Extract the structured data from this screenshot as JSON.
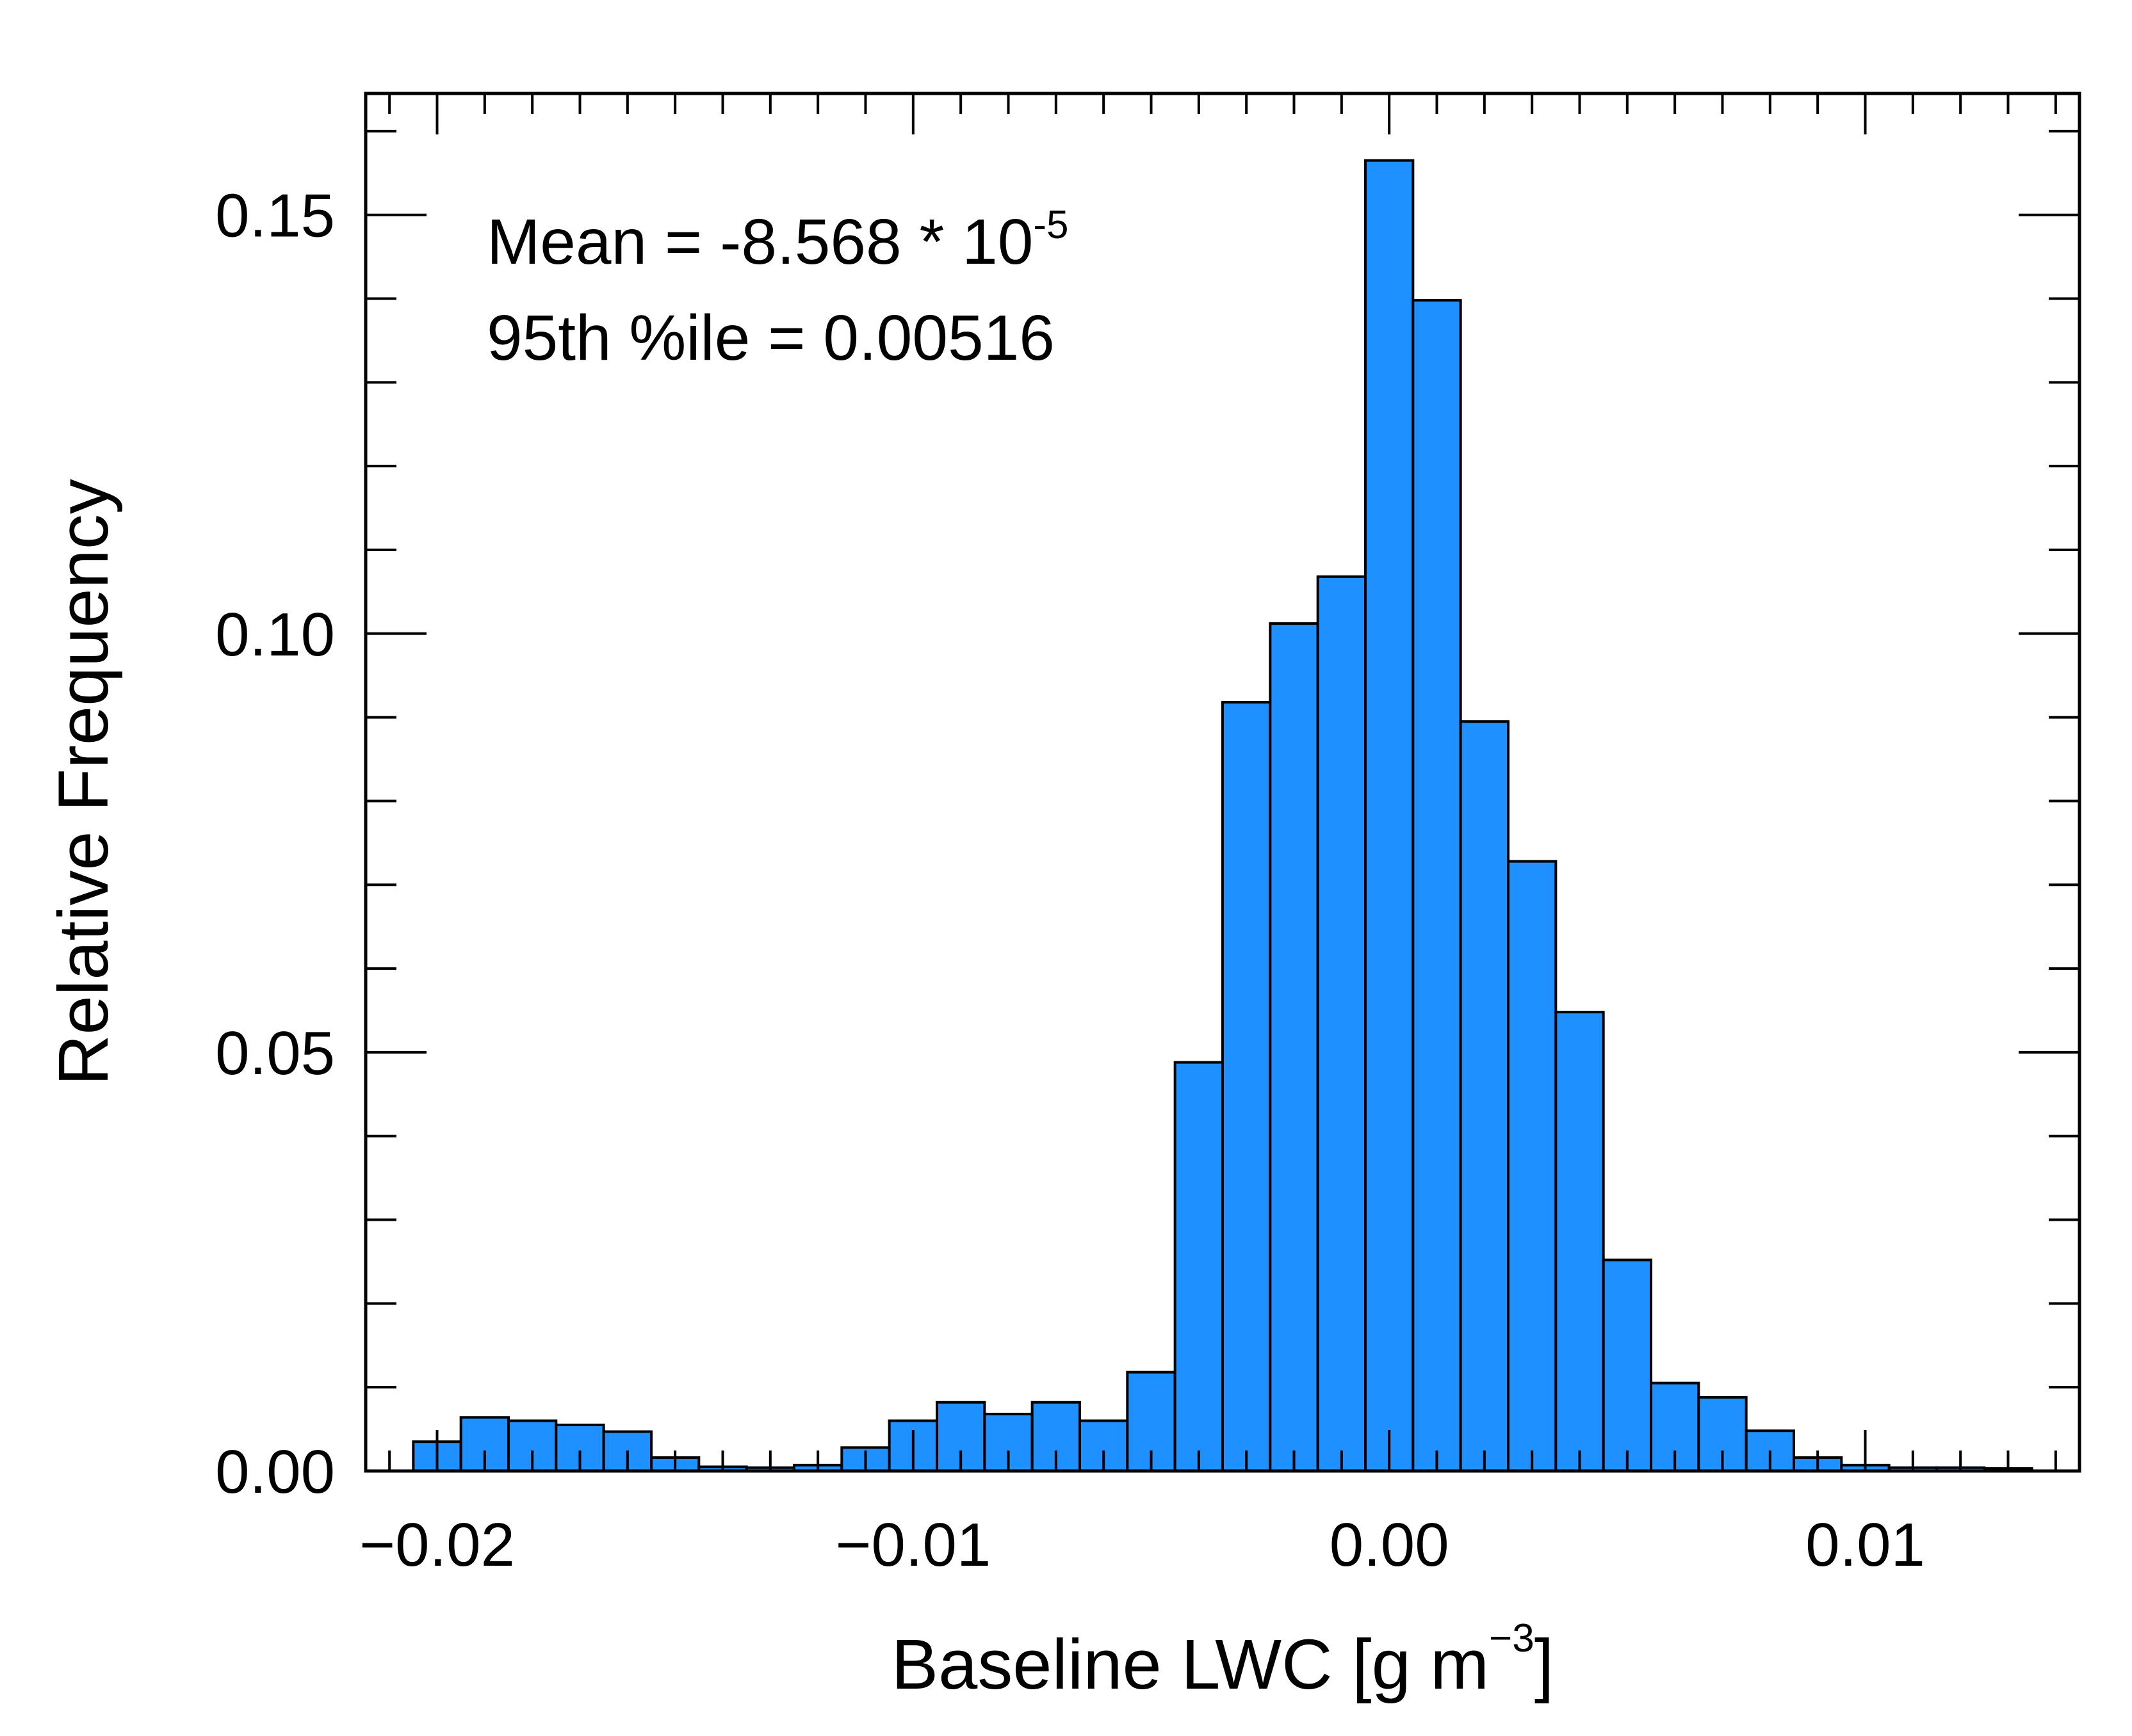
{
  "chart_data": {
    "type": "bar",
    "title": "",
    "xlabel": "Baseline LWC [g m",
    "xlabel_sup": "−3",
    "xlabel_close": "]",
    "ylabel": "Relative Frequency",
    "xlim": [
      -0.0215,
      0.0145
    ],
    "ylim": [
      0.0,
      0.1645
    ],
    "x_ticks": [
      -0.02,
      -0.01,
      0.0,
      0.01
    ],
    "x_tick_labels": [
      "−0.02",
      "−0.01",
      "0.00",
      "0.01"
    ],
    "y_ticks": [
      0.0,
      0.05,
      0.1,
      0.15
    ],
    "y_tick_labels": [
      "0.00",
      "0.05",
      "0.10",
      "0.15"
    ],
    "grid": false,
    "bin_width": 0.001,
    "bin_start": -0.0205,
    "values": [
      0.0035,
      0.0064,
      0.006,
      0.0055,
      0.0047,
      0.0016,
      0.0005,
      0.0004,
      0.0007,
      0.0028,
      0.006,
      0.0082,
      0.0068,
      0.0082,
      0.006,
      0.0118,
      0.0488,
      0.0918,
      0.1012,
      0.1068,
      0.1565,
      0.1398,
      0.0895,
      0.0728,
      0.0548,
      0.0252,
      0.0105,
      0.0088,
      0.0048,
      0.0016,
      0.0007,
      0.0004,
      0.0004,
      0.0003
    ],
    "color": "#1e90ff",
    "annotations": {
      "mean_text": "Mean = -8.568 * 10",
      "mean_exp": "-5",
      "pct_text": "95th %ile = 0.00516"
    }
  }
}
